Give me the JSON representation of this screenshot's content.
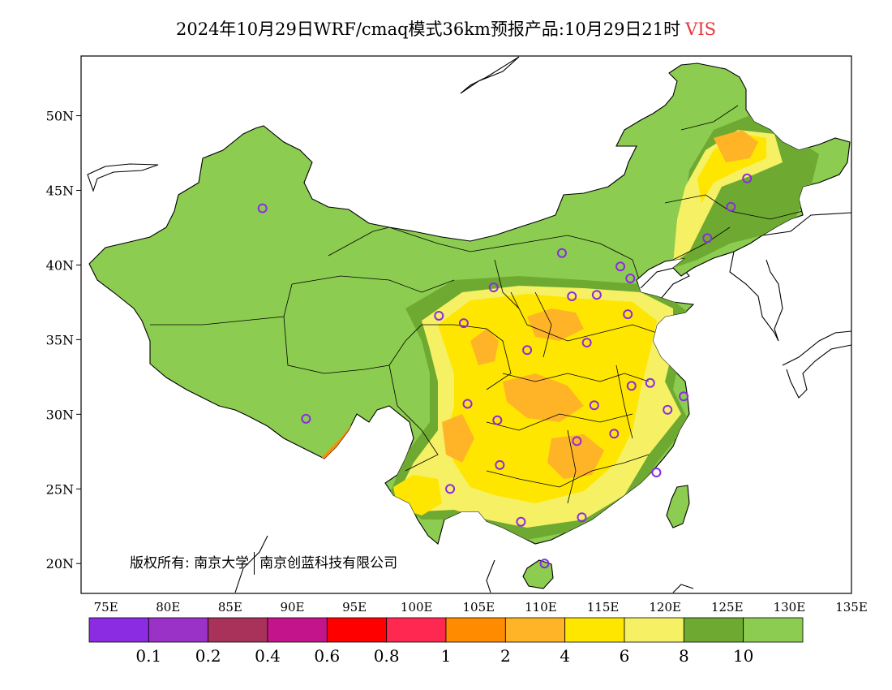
{
  "title": {
    "main": "2024年10月29日WRF/cmaq模式36km预报产品:10月29日21时",
    "variable": "VIS",
    "variable_color": "#e8353a"
  },
  "map": {
    "lon_range": [
      73,
      135
    ],
    "lat_range": [
      18,
      54
    ],
    "lat_ticks": [
      {
        "value": 50,
        "label": "50N"
      },
      {
        "value": 45,
        "label": "45N"
      },
      {
        "value": 40,
        "label": "40N"
      },
      {
        "value": 35,
        "label": "35N"
      },
      {
        "value": 30,
        "label": "30N"
      },
      {
        "value": 25,
        "label": "25N"
      },
      {
        "value": 20,
        "label": "20N"
      }
    ],
    "lon_ticks": [
      {
        "value": 75,
        "label": "75E"
      },
      {
        "value": 80,
        "label": "80E"
      },
      {
        "value": 85,
        "label": "85E"
      },
      {
        "value": 90,
        "label": "90E"
      },
      {
        "value": 95,
        "label": "95E"
      },
      {
        "value": 100,
        "label": "100E"
      },
      {
        "value": 105,
        "label": "105E"
      },
      {
        "value": 110,
        "label": "110E"
      },
      {
        "value": 115,
        "label": "115E"
      },
      {
        "value": 120,
        "label": "120E"
      },
      {
        "value": 125,
        "label": "125E"
      },
      {
        "value": 130,
        "label": "130E"
      },
      {
        "value": 135,
        "label": "135E"
      }
    ],
    "cities": [
      [
        87.6,
        43.8
      ],
      [
        91.1,
        29.7
      ],
      [
        101.8,
        36.6
      ],
      [
        103.8,
        36.1
      ],
      [
        106.2,
        38.5
      ],
      [
        111.7,
        40.8
      ],
      [
        116.4,
        39.9
      ],
      [
        117.2,
        39.1
      ],
      [
        114.5,
        38.0
      ],
      [
        112.5,
        37.9
      ],
      [
        117.0,
        36.7
      ],
      [
        113.7,
        34.8
      ],
      [
        108.9,
        34.3
      ],
      [
        104.1,
        30.7
      ],
      [
        106.5,
        29.6
      ],
      [
        106.7,
        26.6
      ],
      [
        102.7,
        25.0
      ],
      [
        108.4,
        22.8
      ],
      [
        113.3,
        23.1
      ],
      [
        110.3,
        20.0
      ],
      [
        112.9,
        28.2
      ],
      [
        115.9,
        28.7
      ],
      [
        114.3,
        30.6
      ],
      [
        117.3,
        31.9
      ],
      [
        118.8,
        32.1
      ],
      [
        120.2,
        30.3
      ],
      [
        121.5,
        31.2
      ],
      [
        119.3,
        26.1
      ],
      [
        123.4,
        41.8
      ],
      [
        125.3,
        43.9
      ],
      [
        126.6,
        45.8
      ]
    ],
    "city_marker_color": "#8b2be2",
    "land_color": "#8ccc50"
  },
  "colorbar": {
    "colors": [
      "#8b2be2",
      "#9b32c8",
      "#a8325a",
      "#c4148c",
      "#ff0000",
      "#ff2850",
      "#ff8c00",
      "#ffb428",
      "#ffe600",
      "#f5f064",
      "#6eaa32",
      "#8ccc50"
    ],
    "labels": [
      "0.1",
      "0.2",
      "0.4",
      "0.6",
      "0.8",
      "1",
      "2",
      "4",
      "6",
      "8",
      "10"
    ]
  },
  "copyright": {
    "prefix": "版权所有:",
    "org1": "南京大学",
    "org2": "南京创蓝科技有限公司"
  }
}
